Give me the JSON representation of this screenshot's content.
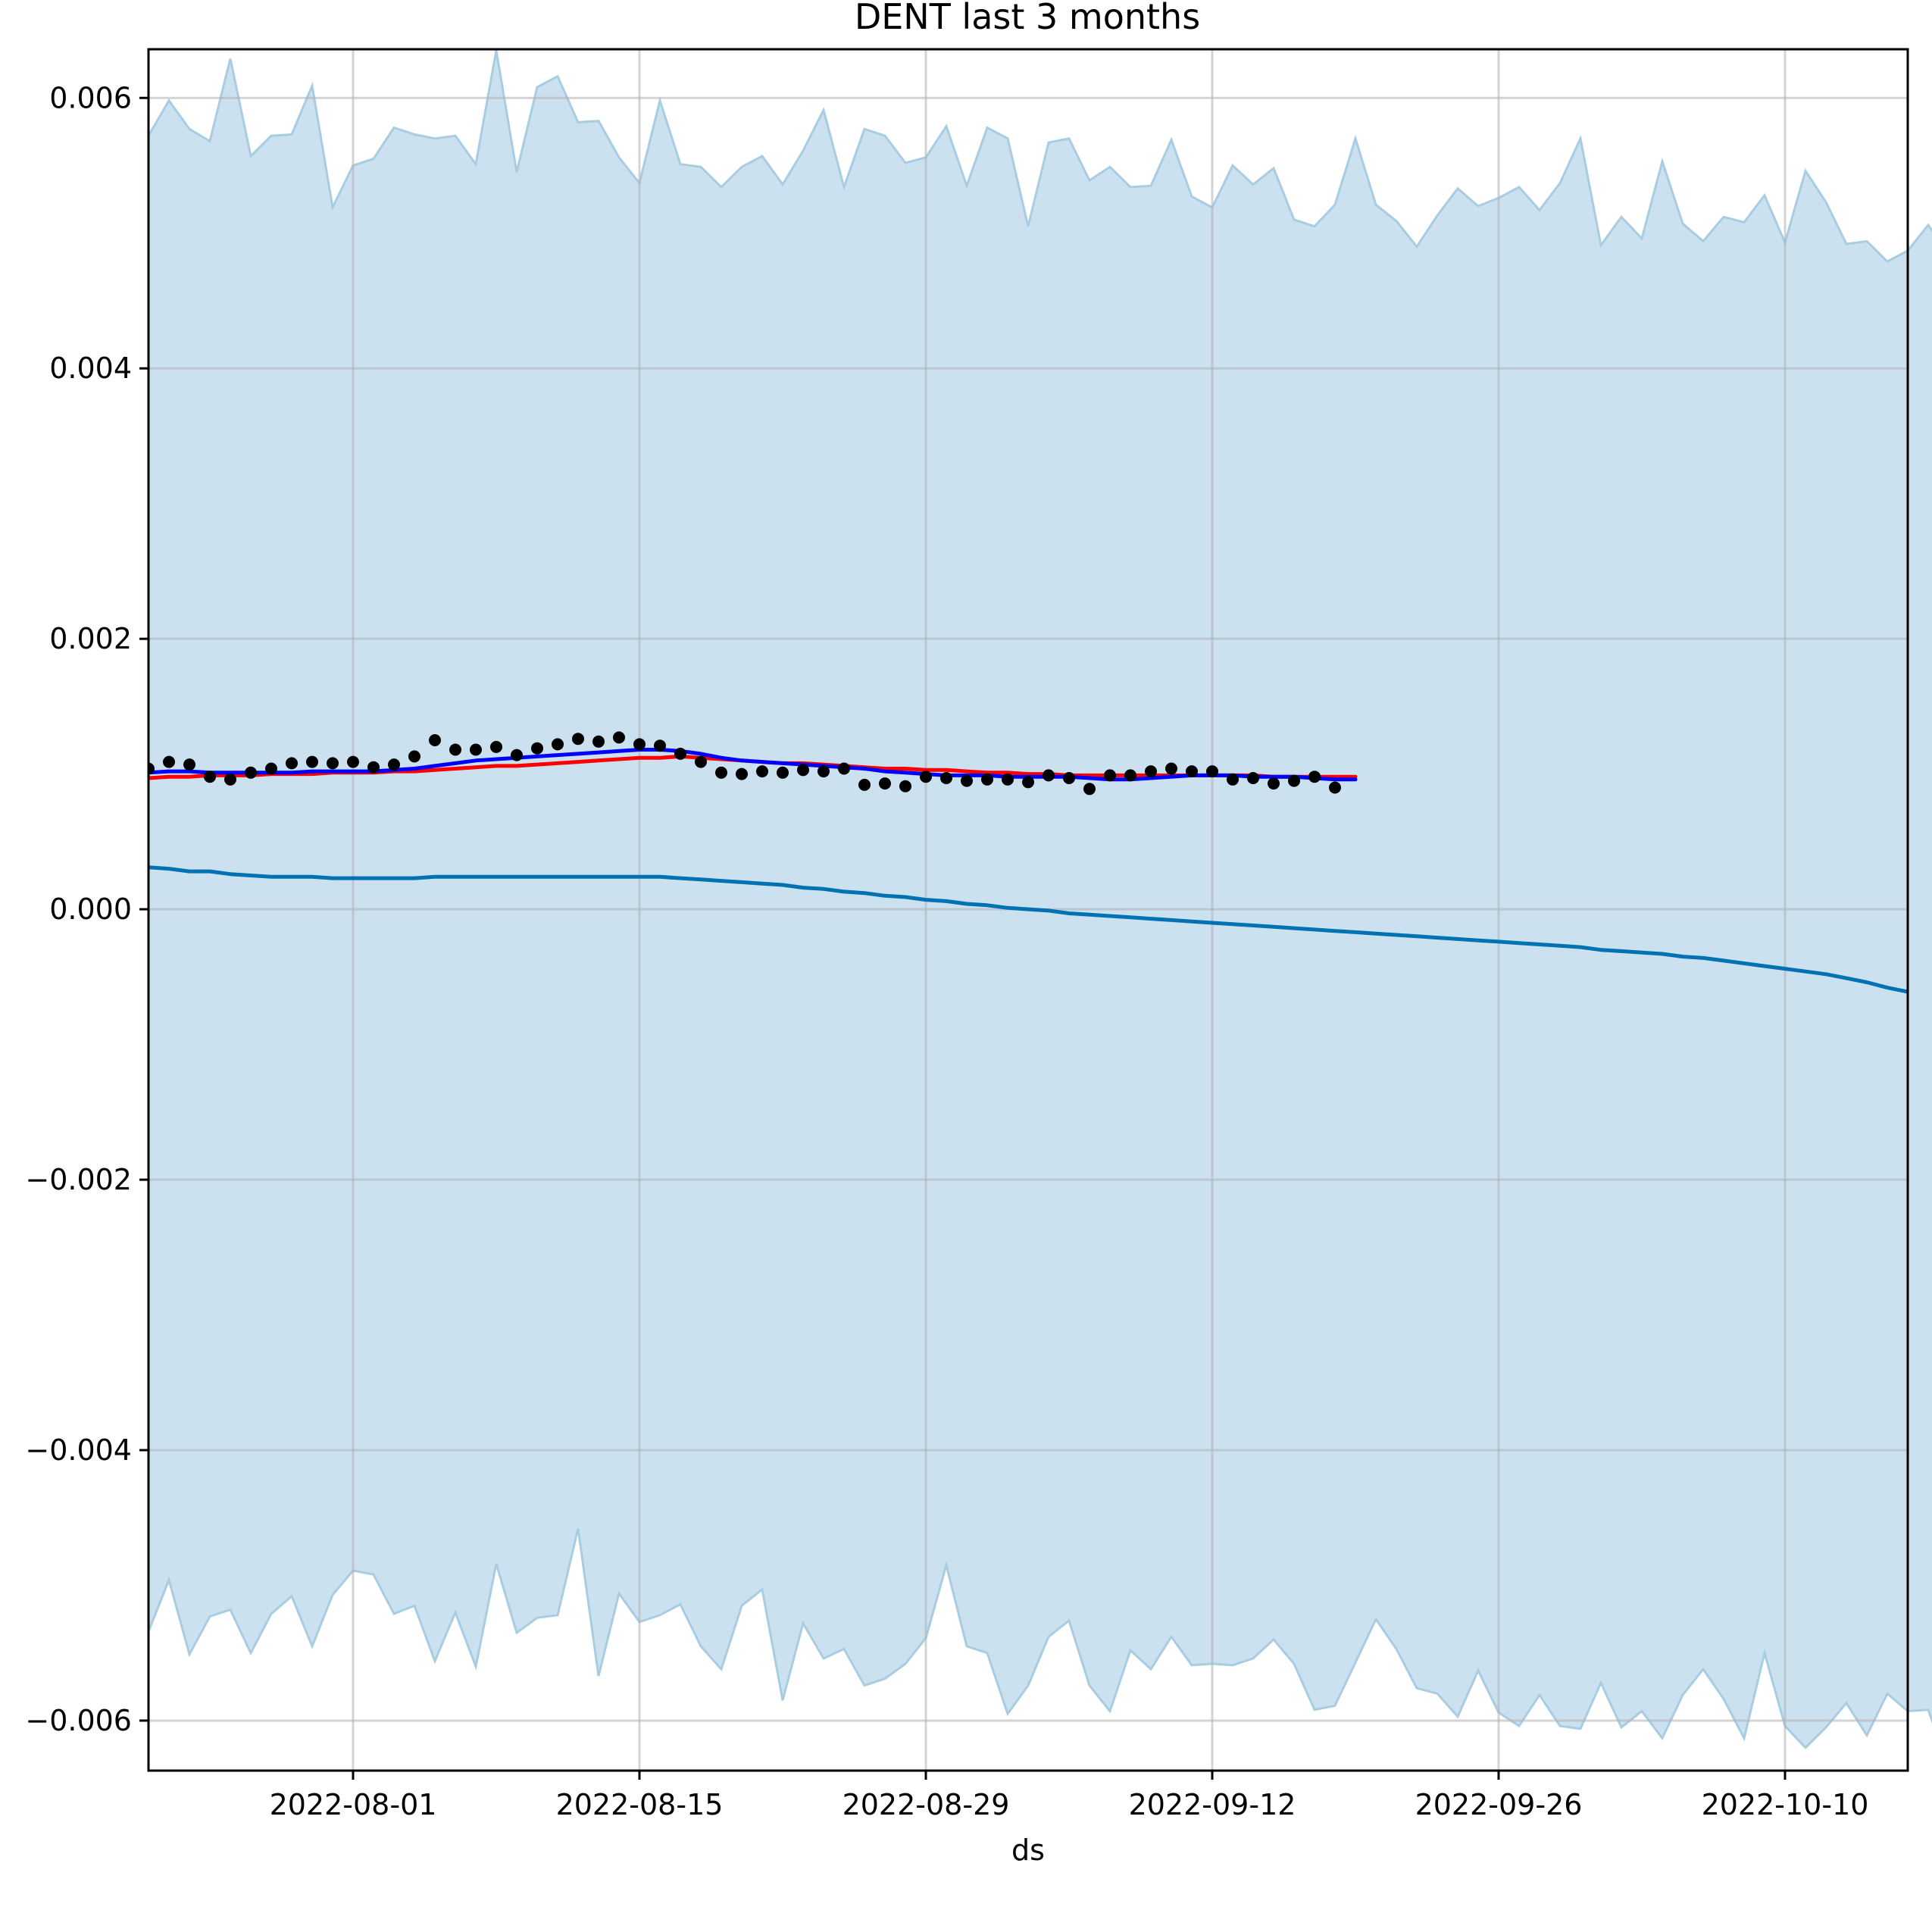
{
  "chart_data": {
    "type": "line",
    "title": "DENT last 3 months",
    "xlabel": "ds",
    "ylabel": "",
    "x_axis_type": "date",
    "xlim": [
      "2022-07-22",
      "2022-10-16"
    ],
    "ylim": [
      -0.00637,
      0.00636
    ],
    "grid": true,
    "legend": "none",
    "x_ticks": [
      "2022-08-01",
      "2022-08-15",
      "2022-08-29",
      "2022-09-12",
      "2022-09-26",
      "2022-10-10"
    ],
    "y_ticks": [
      0.006,
      0.004,
      0.002,
      0.0,
      -0.002,
      -0.004,
      -0.006
    ],
    "y_tick_labels": [
      "0.006",
      "0.004",
      "0.002",
      "0.000",
      "−0.002",
      "−0.004",
      "−0.006"
    ],
    "colors": {
      "band_fill": "#cce1ef",
      "band_edge": "#a8cde3",
      "trend": "#0072b2",
      "red_line": "#ff0000",
      "blue_line": "#0000ff",
      "points": "#000000",
      "grid": "#bfbfbf"
    },
    "series": [
      {
        "kind": "band",
        "start": "2022-07-22",
        "upper": [
          0.00572,
          0.00598,
          0.00577,
          0.00568,
          0.00629,
          0.00557,
          0.00572,
          0.00573,
          0.00609,
          0.00519,
          0.0055,
          0.00555,
          0.00578,
          0.00573,
          0.0057,
          0.00572,
          0.00551,
          0.00635,
          0.00545,
          0.00608,
          0.00616,
          0.00582,
          0.00583,
          0.00556,
          0.00537,
          0.00598,
          0.00551,
          0.00549,
          0.00534,
          0.00549,
          0.00557,
          0.00536,
          0.00561,
          0.00591,
          0.00534,
          0.00577,
          0.00572,
          0.00552,
          0.00556,
          0.00579,
          0.00535,
          0.00578,
          0.0057,
          0.00505,
          0.00567,
          0.0057,
          0.00539,
          0.00549,
          0.00534,
          0.00535,
          0.00569,
          0.00527,
          0.00519,
          0.0055,
          0.00536,
          0.00548,
          0.0051,
          0.00505,
          0.00521,
          0.0057,
          0.00521,
          0.00509,
          0.0049,
          0.00513,
          0.00533,
          0.0052,
          0.00526,
          0.00534,
          0.00517,
          0.00537,
          0.0057,
          0.00491,
          0.00512,
          0.00496,
          0.00553,
          0.00507,
          0.00494,
          0.00512,
          0.00508,
          0.00528,
          0.00493,
          0.00546,
          0.00523,
          0.00492,
          0.00494,
          0.00479,
          0.00487,
          0.00506,
          0.00485,
          0.00545
        ],
        "lower": [
          -0.00534,
          -0.00496,
          -0.00551,
          -0.00523,
          -0.00518,
          -0.0055,
          -0.00521,
          -0.00508,
          -0.00545,
          -0.00507,
          -0.00489,
          -0.00492,
          -0.00521,
          -0.00515,
          -0.00556,
          -0.0052,
          -0.0056,
          -0.00484,
          -0.00535,
          -0.00524,
          -0.00522,
          -0.00458,
          -0.00567,
          -0.00506,
          -0.00527,
          -0.00522,
          -0.00514,
          -0.00545,
          -0.00562,
          -0.00515,
          -0.00503,
          -0.00585,
          -0.00528,
          -0.00554,
          -0.00547,
          -0.00574,
          -0.00569,
          -0.00558,
          -0.00539,
          -0.00485,
          -0.00545,
          -0.0055,
          -0.00595,
          -0.00574,
          -0.00538,
          -0.00526,
          -0.00574,
          -0.00593,
          -0.00548,
          -0.00562,
          -0.00538,
          -0.00559,
          -0.00558,
          -0.00559,
          -0.00554,
          -0.0054,
          -0.00558,
          -0.00592,
          -0.00589,
          -0.00557,
          -0.00525,
          -0.00547,
          -0.00576,
          -0.0058,
          -0.00597,
          -0.00563,
          -0.00594,
          -0.00604,
          -0.00581,
          -0.00604,
          -0.00606,
          -0.00572,
          -0.00605,
          -0.00593,
          -0.00613,
          -0.00581,
          -0.00562,
          -0.00584,
          -0.00613,
          -0.0055,
          -0.00604,
          -0.0062,
          -0.00605,
          -0.00587,
          -0.00611,
          -0.0058,
          -0.00593,
          -0.00592,
          -0.00635,
          -0.00588
        ]
      },
      {
        "kind": "line",
        "role": "trend",
        "start": "2022-07-22",
        "values": [
          0.00031,
          0.0003,
          0.00028,
          0.00028,
          0.00026,
          0.00025,
          0.00024,
          0.00024,
          0.00024,
          0.00023,
          0.00023,
          0.00023,
          0.00023,
          0.00023,
          0.00024,
          0.00024,
          0.00024,
          0.00024,
          0.00024,
          0.00024,
          0.00024,
          0.00024,
          0.00024,
          0.00024,
          0.00024,
          0.00024,
          0.00023,
          0.00022,
          0.00021,
          0.0002,
          0.00019,
          0.00018,
          0.00016,
          0.00015,
          0.00013,
          0.00012,
          0.0001,
          9e-05,
          7e-05,
          6e-05,
          4e-05,
          3e-05,
          1e-05,
          0.0,
          -1e-05,
          -3e-05,
          -4e-05,
          -5e-05,
          -6e-05,
          -7e-05,
          -8e-05,
          -9e-05,
          -0.0001,
          -0.00011,
          -0.00012,
          -0.00013,
          -0.00014,
          -0.00015,
          -0.00016,
          -0.00017,
          -0.00018,
          -0.00019,
          -0.0002,
          -0.00021,
          -0.00022,
          -0.00023,
          -0.00024,
          -0.00025,
          -0.00026,
          -0.00027,
          -0.00028,
          -0.0003,
          -0.00031,
          -0.00032,
          -0.00033,
          -0.00035,
          -0.00036,
          -0.00038,
          -0.0004,
          -0.00042,
          -0.00044,
          -0.00046,
          -0.00048,
          -0.00051,
          -0.00054,
          -0.00058,
          -0.00061,
          -0.00064,
          -0.00068,
          -0.00072
        ]
      },
      {
        "kind": "line",
        "role": "red",
        "start": "2022-07-22",
        "values": [
          0.00097,
          0.00098,
          0.00098,
          0.00099,
          0.00099,
          0.00099,
          0.001,
          0.001,
          0.001,
          0.00101,
          0.00101,
          0.00101,
          0.00102,
          0.00102,
          0.00103,
          0.00104,
          0.00105,
          0.00106,
          0.00106,
          0.00107,
          0.00108,
          0.00109,
          0.0011,
          0.00111,
          0.00112,
          0.00112,
          0.00113,
          0.00112,
          0.00111,
          0.0011,
          0.00109,
          0.00108,
          0.00108,
          0.00107,
          0.00106,
          0.00105,
          0.00104,
          0.00104,
          0.00103,
          0.00103,
          0.00102,
          0.00101,
          0.00101,
          0.001,
          0.001,
          0.00099,
          0.00099,
          0.00099,
          0.00099,
          0.00099,
          0.00099,
          0.00099,
          0.00099,
          0.00099,
          0.00099,
          0.00098,
          0.00098,
          0.00098,
          0.00098,
          0.00098
        ]
      },
      {
        "kind": "line",
        "role": "blue",
        "start": "2022-07-22",
        "values": [
          0.00101,
          0.00102,
          0.00102,
          0.00101,
          0.00101,
          0.00101,
          0.00101,
          0.00101,
          0.00102,
          0.00102,
          0.00102,
          0.00102,
          0.00103,
          0.00104,
          0.00106,
          0.00108,
          0.0011,
          0.00111,
          0.00112,
          0.00113,
          0.00114,
          0.00115,
          0.00116,
          0.00117,
          0.00118,
          0.00118,
          0.00117,
          0.00115,
          0.00112,
          0.0011,
          0.00109,
          0.00108,
          0.00107,
          0.00106,
          0.00105,
          0.00104,
          0.00102,
          0.00101,
          0.001,
          0.00099,
          0.00099,
          0.00099,
          0.00098,
          0.00098,
          0.00098,
          0.00098,
          0.00097,
          0.00096,
          0.00096,
          0.00097,
          0.00098,
          0.00099,
          0.00099,
          0.00099,
          0.00098,
          0.00098,
          0.00098,
          0.00097,
          0.00096,
          0.00096
        ]
      },
      {
        "kind": "scatter",
        "role": "observed",
        "start": "2022-07-22",
        "values": [
          0.00104,
          0.00109,
          0.00107,
          0.00098,
          0.00096,
          0.00101,
          0.00104,
          0.00108,
          0.00109,
          0.00108,
          0.00109,
          0.00105,
          0.00107,
          0.00113,
          0.00125,
          0.00118,
          0.00118,
          0.0012,
          0.00114,
          0.00119,
          0.00122,
          0.00126,
          0.00124,
          0.00127,
          0.00122,
          0.00121,
          0.00115,
          0.00109,
          0.00101,
          0.001,
          0.00102,
          0.00101,
          0.00103,
          0.00102,
          0.00104,
          0.00092,
          0.00093,
          0.00091,
          0.00098,
          0.00097,
          0.00095,
          0.00096,
          0.00096,
          0.00094,
          0.00099,
          0.00097,
          0.00089,
          0.00099,
          0.00099,
          0.00102,
          0.00104,
          0.00102,
          0.00102,
          0.00096,
          0.00097,
          0.00093,
          0.00095,
          0.00098,
          0.0009
        ]
      }
    ]
  }
}
